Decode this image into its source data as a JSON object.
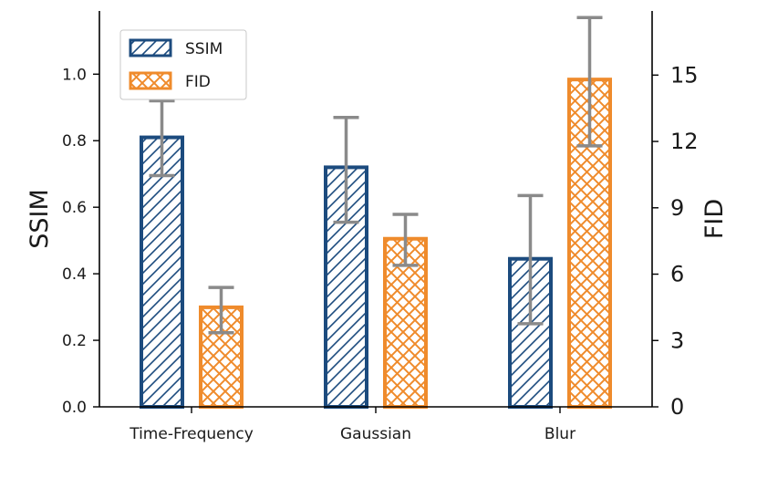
{
  "chart_data": {
    "type": "bar",
    "categories": [
      "Time-Frequency",
      "Gaussian",
      "Blur"
    ],
    "series": [
      {
        "name": "SSIM",
        "axis": "left",
        "values": [
          0.81,
          0.72,
          0.445
        ],
        "error": [
          [
            0.695,
            0.92
          ],
          [
            0.555,
            0.87
          ],
          [
            0.25,
            0.635
          ]
        ],
        "color": "#1c4b7e",
        "pattern": "diagonal-hatch"
      },
      {
        "name": "FID",
        "axis": "right",
        "values": [
          4.5,
          7.6,
          14.8
        ],
        "error": [
          [
            3.35,
            5.4
          ],
          [
            6.4,
            8.7
          ],
          [
            11.8,
            17.6
          ]
        ],
        "color": "#ef8b2c",
        "pattern": "crosshatch"
      }
    ],
    "left_axis": {
      "label": "SSIM",
      "ylim": [
        0.0,
        1.19
      ],
      "ticks": [
        0.0,
        0.2,
        0.4,
        0.6,
        0.8,
        1.0
      ],
      "tick_labels": [
        "0.0",
        "0.2",
        "0.4",
        "0.6",
        "0.8",
        "1.0"
      ]
    },
    "right_axis": {
      "label": "FID",
      "ylim": [
        0,
        17.9
      ],
      "ticks": [
        0,
        3,
        6,
        9,
        12,
        15
      ],
      "tick_labels": [
        "0",
        "3",
        "6",
        "9",
        "12",
        "15"
      ]
    },
    "error_bar_color": "#8a8a8a",
    "legend": {
      "position": "top-left",
      "entries": [
        "SSIM",
        "FID"
      ]
    },
    "grid": false,
    "title": ""
  }
}
